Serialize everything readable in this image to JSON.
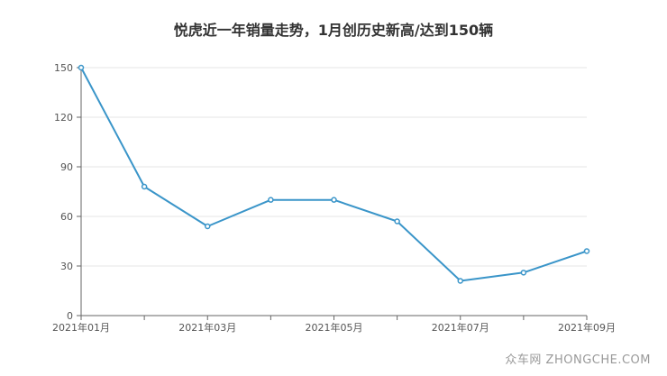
{
  "chart_data": {
    "type": "line",
    "title": "悦虎近一年销量走势，1月创历史新高/达到150辆",
    "xlabel": "",
    "ylabel": "",
    "x": [
      "2021年01月",
      "2021年02月",
      "2021年03月",
      "2021年04月",
      "2021年05月",
      "2021年06月",
      "2021年07月",
      "2021年08月",
      "2021年09月"
    ],
    "x_tick_labels": [
      "2021年01月",
      "2021年03月",
      "2021年05月",
      "2021年07月",
      "2021年09月"
    ],
    "series": [
      {
        "values": [
          150,
          78,
          54,
          70,
          70,
          57,
          21,
          26,
          39
        ]
      }
    ],
    "ylim": [
      0,
      150
    ],
    "y_ticks": [
      0,
      30,
      60,
      90,
      120,
      150
    ],
    "grid": true,
    "color": "#3a95c9"
  },
  "watermark": "众车网 ZHONGCHE.COM"
}
